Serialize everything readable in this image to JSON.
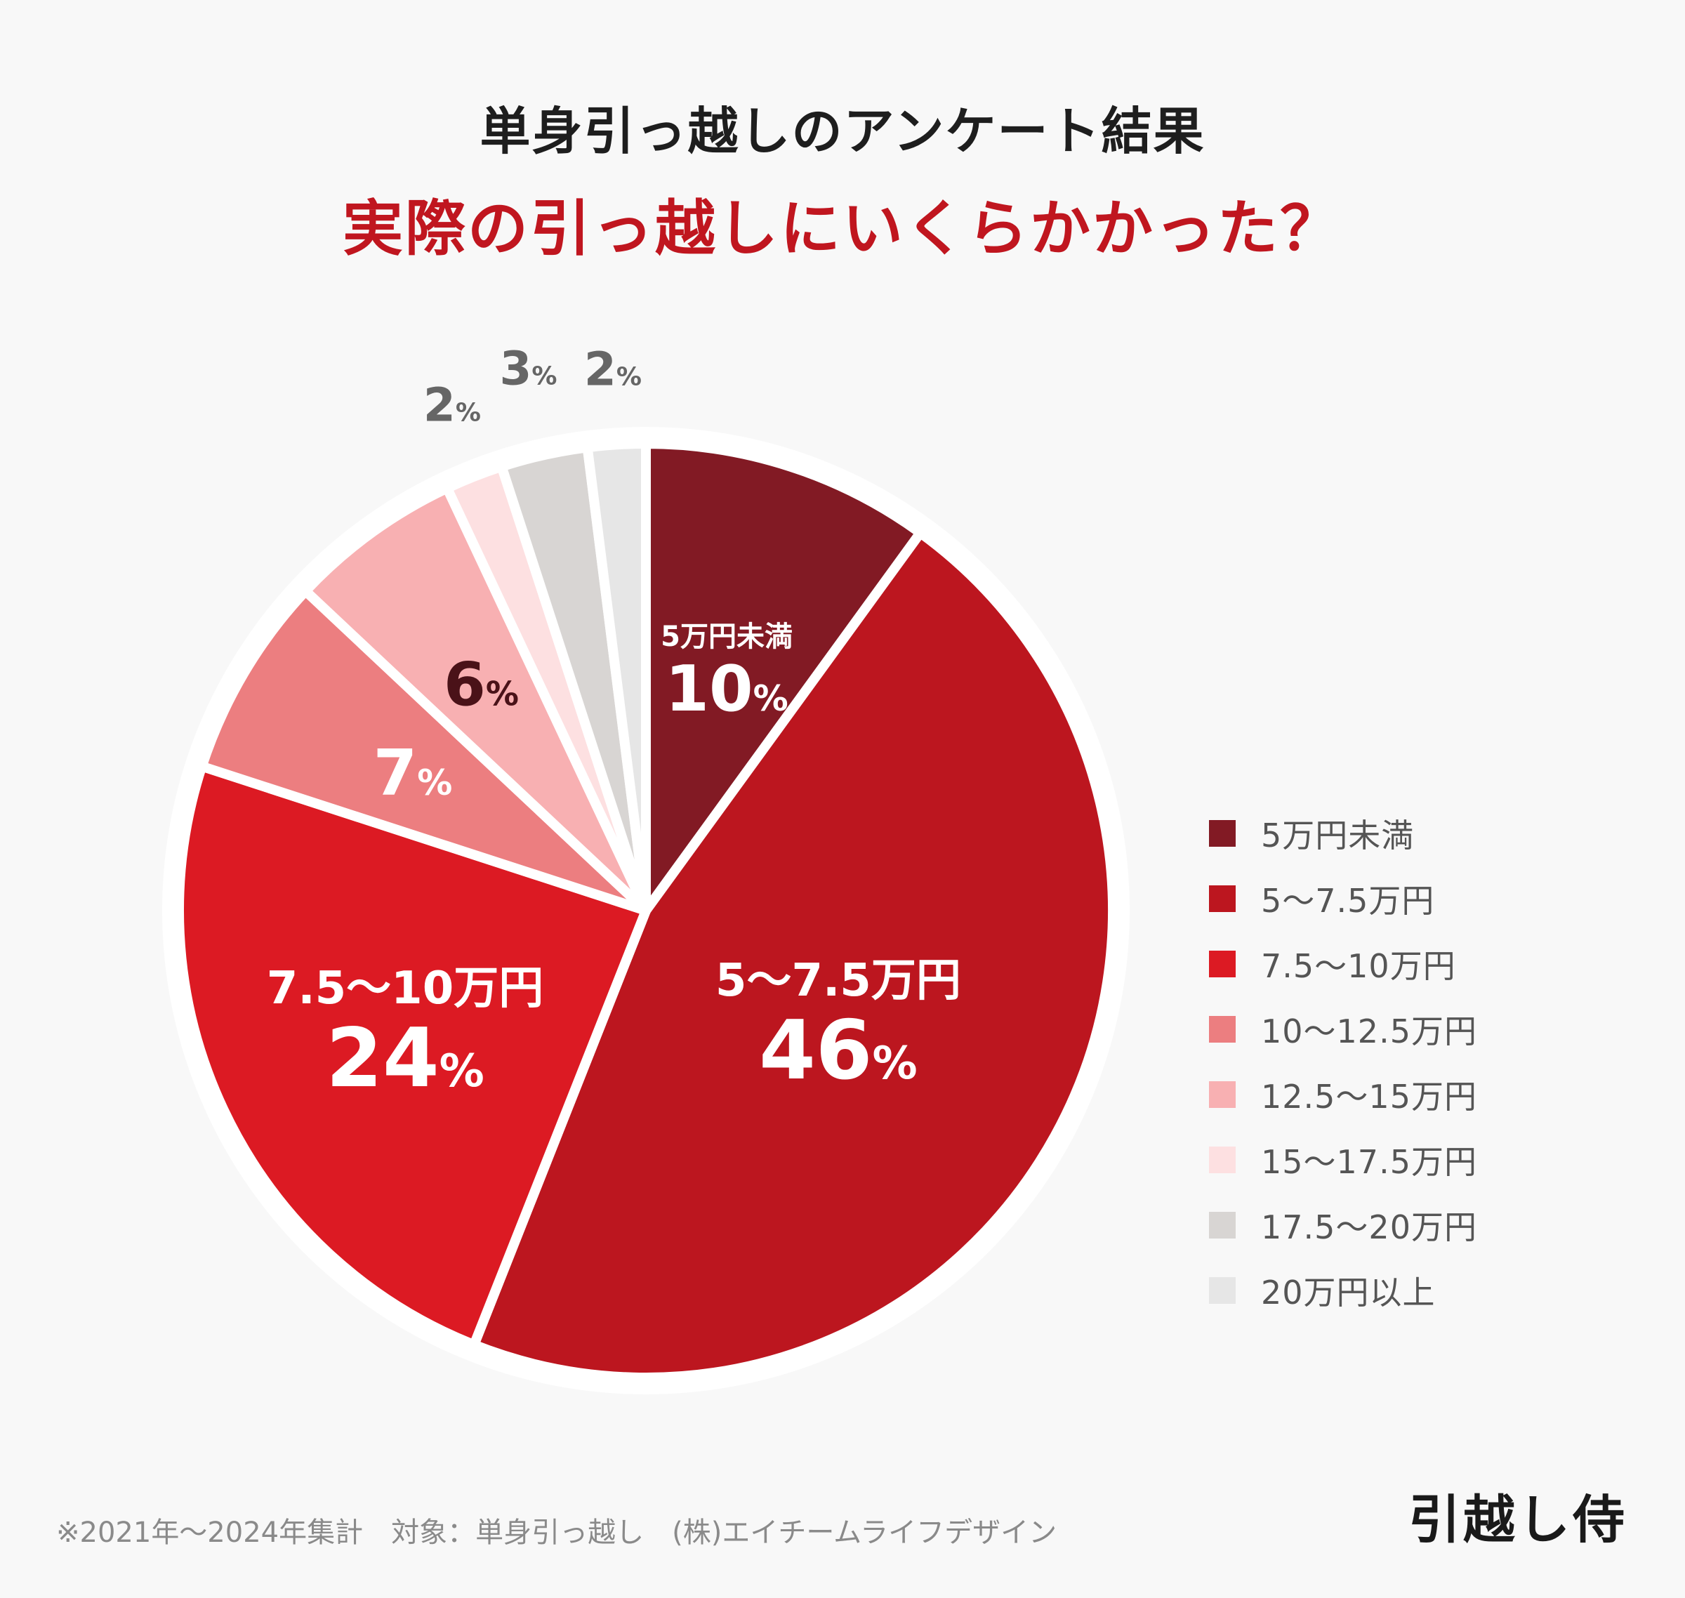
{
  "title": "単身引っ越しのアンケート結果",
  "subtitle": "実際の引っ越しにいくらかかった？",
  "footnote": "※2021年～2024年集計　対象：単身引っ越し　(株)エイチームライフデザイン",
  "logo": "引越し侍",
  "chart_data": {
    "type": "pie",
    "unit": "%",
    "slices": [
      {
        "label": "5万円未満",
        "value": 10,
        "color": "#821a24",
        "text_color": "#ffffff",
        "show_name": true
      },
      {
        "label": "5～7.5万円",
        "value": 46,
        "color": "#bc161f",
        "text_color": "#ffffff",
        "show_name": true
      },
      {
        "label": "7.5～10万円",
        "value": 24,
        "color": "#dc1a23",
        "text_color": "#ffffff",
        "show_name": true
      },
      {
        "label": "10～12.5万円",
        "value": 7,
        "color": "#ec7e80",
        "text_color": "#ffffff",
        "show_name": false
      },
      {
        "label": "12.5～15万円",
        "value": 6,
        "color": "#f8b0b2",
        "text_color": "#4a1218",
        "show_name": false
      },
      {
        "label": "15～17.5万円",
        "value": 2,
        "color": "#fde0e1",
        "text_color": "#666666",
        "show_name": false
      },
      {
        "label": "17.5～20万円",
        "value": 3,
        "color": "#d8d5d3",
        "text_color": "#666666",
        "show_name": false
      },
      {
        "label": "20万円以上",
        "value": 2,
        "color": "#e6e6e6",
        "text_color": "#666666",
        "show_name": false
      }
    ],
    "legend_position": "right"
  }
}
